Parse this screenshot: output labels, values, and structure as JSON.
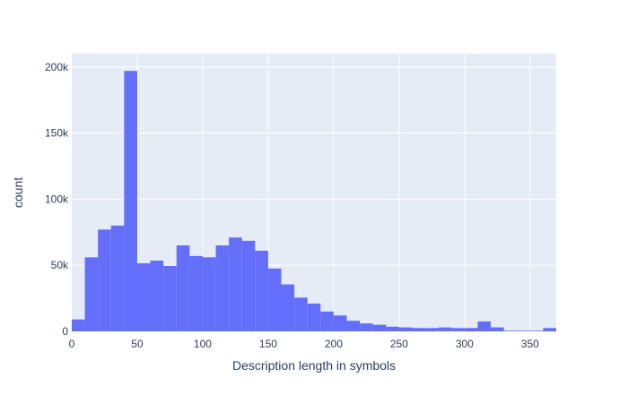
{
  "chart_data": {
    "type": "bar",
    "title": "",
    "xlabel": "Description length in symbols",
    "ylabel": "count",
    "xlim": [
      0,
      370
    ],
    "ylim": [
      0,
      210000
    ],
    "bin_width": 10,
    "x_ticks": [
      0,
      50,
      100,
      150,
      200,
      250,
      300,
      350
    ],
    "x_tick_labels": [
      "0",
      "50",
      "100",
      "150",
      "200",
      "250",
      "300",
      "350"
    ],
    "y_ticks": [
      0,
      50000,
      100000,
      150000,
      200000
    ],
    "y_tick_labels": [
      "0",
      "50k",
      "100k",
      "150k",
      "200k"
    ],
    "grid": true,
    "bar_color": "#636efa",
    "plot_bg": "#e5ecf6",
    "grid_color": "#ffffff",
    "bins": [
      {
        "x0": 0,
        "x1": 10,
        "value": 9000
      },
      {
        "x0": 10,
        "x1": 20,
        "value": 56000
      },
      {
        "x0": 20,
        "x1": 30,
        "value": 77000
      },
      {
        "x0": 30,
        "x1": 40,
        "value": 80000
      },
      {
        "x0": 40,
        "x1": 50,
        "value": 197000
      },
      {
        "x0": 50,
        "x1": 60,
        "value": 51500
      },
      {
        "x0": 60,
        "x1": 70,
        "value": 53500
      },
      {
        "x0": 70,
        "x1": 80,
        "value": 49500
      },
      {
        "x0": 80,
        "x1": 90,
        "value": 65000
      },
      {
        "x0": 90,
        "x1": 100,
        "value": 57000
      },
      {
        "x0": 100,
        "x1": 110,
        "value": 56000
      },
      {
        "x0": 110,
        "x1": 120,
        "value": 65000
      },
      {
        "x0": 120,
        "x1": 130,
        "value": 71000
      },
      {
        "x0": 130,
        "x1": 140,
        "value": 68500
      },
      {
        "x0": 140,
        "x1": 150,
        "value": 61000
      },
      {
        "x0": 150,
        "x1": 160,
        "value": 47500
      },
      {
        "x0": 160,
        "x1": 170,
        "value": 35500
      },
      {
        "x0": 170,
        "x1": 180,
        "value": 25500
      },
      {
        "x0": 180,
        "x1": 190,
        "value": 21000
      },
      {
        "x0": 190,
        "x1": 200,
        "value": 15000
      },
      {
        "x0": 200,
        "x1": 210,
        "value": 12000
      },
      {
        "x0": 210,
        "x1": 220,
        "value": 8000
      },
      {
        "x0": 220,
        "x1": 230,
        "value": 6000
      },
      {
        "x0": 230,
        "x1": 240,
        "value": 5000
      },
      {
        "x0": 240,
        "x1": 250,
        "value": 3500
      },
      {
        "x0": 250,
        "x1": 260,
        "value": 3000
      },
      {
        "x0": 260,
        "x1": 270,
        "value": 2500
      },
      {
        "x0": 270,
        "x1": 280,
        "value": 2500
      },
      {
        "x0": 280,
        "x1": 290,
        "value": 3000
      },
      {
        "x0": 290,
        "x1": 300,
        "value": 2500
      },
      {
        "x0": 300,
        "x1": 310,
        "value": 2500
      },
      {
        "x0": 310,
        "x1": 320,
        "value": 7500
      },
      {
        "x0": 320,
        "x1": 330,
        "value": 3000
      },
      {
        "x0": 330,
        "x1": 340,
        "value": 500
      },
      {
        "x0": 340,
        "x1": 350,
        "value": 500
      },
      {
        "x0": 350,
        "x1": 360,
        "value": 500
      },
      {
        "x0": 360,
        "x1": 370,
        "value": 2500
      }
    ]
  }
}
